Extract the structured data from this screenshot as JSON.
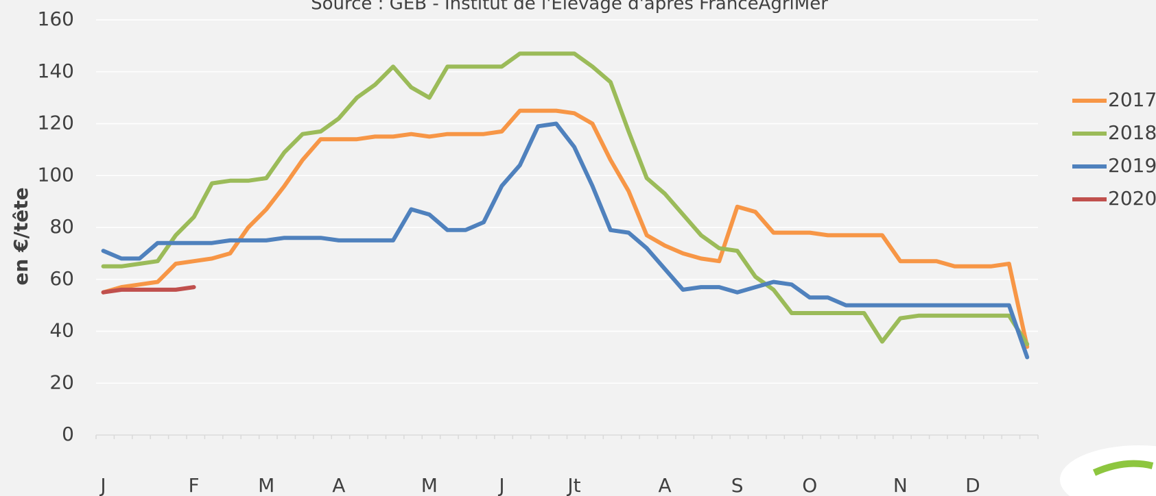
{
  "chart_data": {
    "type": "line",
    "title": "Source : GEB - Institut de l'Elevage d'après FranceAgriMer",
    "y_label": "en €/tête",
    "categories": [
      "J",
      null,
      null,
      null,
      null,
      "F",
      null,
      null,
      null,
      "M",
      null,
      null,
      null,
      "A",
      null,
      null,
      null,
      null,
      "M",
      null,
      null,
      null,
      "J",
      null,
      null,
      null,
      "Jt",
      null,
      null,
      null,
      null,
      "A",
      null,
      null,
      null,
      "S",
      null,
      null,
      null,
      "O",
      null,
      null,
      null,
      null,
      "N",
      null,
      null,
      null,
      "D",
      null,
      null,
      null
    ],
    "series": [
      {
        "name": "2017",
        "color": "#f79646",
        "values": [
          55,
          57,
          58,
          59,
          66,
          67,
          68,
          70,
          80,
          87,
          96,
          106,
          114,
          114,
          114,
          115,
          115,
          116,
          115,
          116,
          116,
          116,
          117,
          125,
          125,
          125,
          124,
          120,
          106,
          94,
          77,
          73,
          70,
          68,
          67,
          88,
          86,
          78,
          78,
          78,
          77,
          77,
          77,
          77,
          67,
          67,
          67,
          65,
          65,
          65,
          66,
          34
        ]
      },
      {
        "name": "2018",
        "color": "#9bbb59",
        "values": [
          65,
          65,
          66,
          67,
          77,
          84,
          97,
          98,
          98,
          99,
          109,
          116,
          117,
          122,
          130,
          135,
          142,
          134,
          130,
          142,
          142,
          142,
          142,
          147,
          147,
          147,
          147,
          142,
          136,
          117,
          99,
          93,
          85,
          77,
          72,
          71,
          61,
          56,
          47,
          47,
          47,
          47,
          47,
          36,
          45,
          46,
          46,
          46,
          46,
          46,
          46,
          35
        ]
      },
      {
        "name": "2019",
        "color": "#4f81bd",
        "values": [
          71,
          68,
          68,
          74,
          74,
          74,
          74,
          75,
          75,
          75,
          76,
          76,
          76,
          75,
          75,
          75,
          75,
          87,
          85,
          79,
          79,
          82,
          96,
          104,
          119,
          120,
          111,
          96,
          79,
          78,
          72,
          64,
          56,
          57,
          57,
          55,
          57,
          59,
          58,
          53,
          53,
          50,
          50,
          50,
          50,
          50,
          50,
          50,
          50,
          50,
          50,
          30
        ]
      },
      {
        "name": "2020",
        "color": "#c0504d",
        "values": [
          55,
          56,
          56,
          56,
          56,
          57,
          null,
          null,
          null,
          null,
          null,
          null,
          null,
          null,
          null,
          null,
          null,
          null,
          null,
          null,
          null,
          null,
          null,
          null,
          null,
          null,
          null,
          null,
          null,
          null,
          null,
          null,
          null,
          null,
          null,
          null,
          null,
          null,
          null,
          null,
          null,
          null,
          null,
          null,
          null,
          null,
          null,
          null,
          null,
          null,
          null,
          null
        ]
      }
    ],
    "ylim": [
      0,
      160
    ],
    "yticks": [
      0,
      20,
      40,
      60,
      80,
      100,
      120,
      140,
      160
    ],
    "grid": true,
    "legend": "right"
  }
}
